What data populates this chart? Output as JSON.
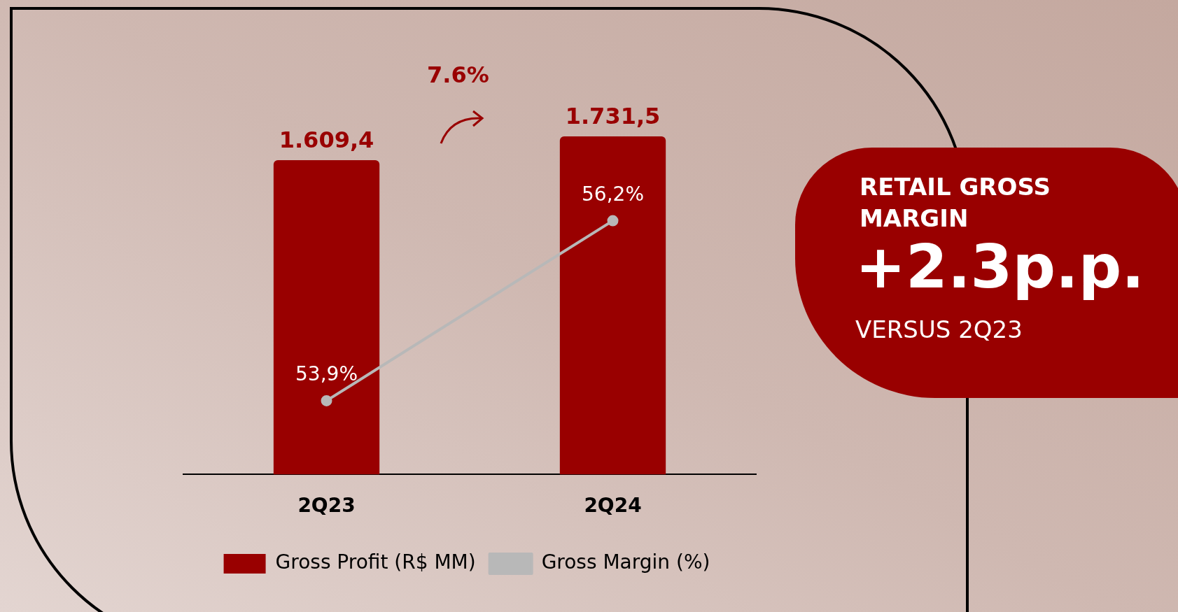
{
  "chart_data": {
    "type": "bar",
    "categories": [
      "2Q23",
      "2Q24"
    ],
    "series": [
      {
        "name": "Gross Profit (R$ MM)",
        "color": "#990000",
        "values": [
          1609.4,
          1731.5
        ],
        "value_labels": [
          "1.609,4",
          "1.731,5"
        ]
      },
      {
        "name": "Gross Margin (%)",
        "type": "line",
        "axis": "y2",
        "color": "#b8b8b8",
        "values": [
          53.9,
          56.2
        ],
        "value_labels": [
          "53,9%",
          "56,2%"
        ]
      }
    ],
    "legend": "bottom",
    "grid": false,
    "marker": "circle",
    "line_style": "solid",
    "annotations": [
      "7.6%",
      "RETAIL GROSS MARGIN",
      "+2.3p.p.",
      "VERSUS 2Q23"
    ]
  }
}
